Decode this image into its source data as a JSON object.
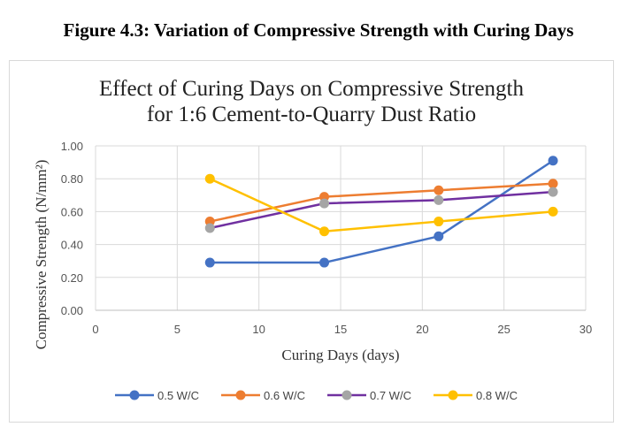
{
  "caption": "Figure 4.3: Variation of Compressive Strength with Curing Days",
  "chart_data": {
    "type": "line",
    "title_lines": [
      "Effect of Curing Days on Compressive Strength",
      "for 1:6 Cement-to-Quarry Dust Ratio"
    ],
    "xlabel": "Curing Days (days)",
    "ylabel": "Compressive Strength (N/mm²)",
    "xlim": [
      0,
      30
    ],
    "ylim": [
      0,
      1.0
    ],
    "xticks": [
      0,
      5,
      10,
      15,
      20,
      25,
      30
    ],
    "yticks": [
      0.0,
      0.2,
      0.4,
      0.6,
      0.8,
      1.0
    ],
    "ytick_labels": [
      "0.00",
      "0.20",
      "0.40",
      "0.60",
      "0.80",
      "1.00"
    ],
    "xtick_labels": [
      "0",
      "5",
      "10",
      "15",
      "20",
      "25",
      "30"
    ],
    "grid": true,
    "legend_position": "bottom",
    "x": [
      7,
      14,
      21,
      28
    ],
    "series": [
      {
        "name": "0.5 W/C",
        "color": "#4472C4",
        "values": [
          0.29,
          0.29,
          0.45,
          0.91
        ]
      },
      {
        "name": "0.6 W/C",
        "color": "#ED7D31",
        "values": [
          0.54,
          0.69,
          0.73,
          0.77
        ]
      },
      {
        "name": "0.7 W/C",
        "color": "#7030A0",
        "marker_color": "#A5A5A5",
        "values": [
          0.5,
          0.65,
          0.67,
          0.72
        ]
      },
      {
        "name": "0.8 W/C",
        "color": "#FFC000",
        "values": [
          0.8,
          0.48,
          0.54,
          0.6
        ]
      }
    ]
  }
}
